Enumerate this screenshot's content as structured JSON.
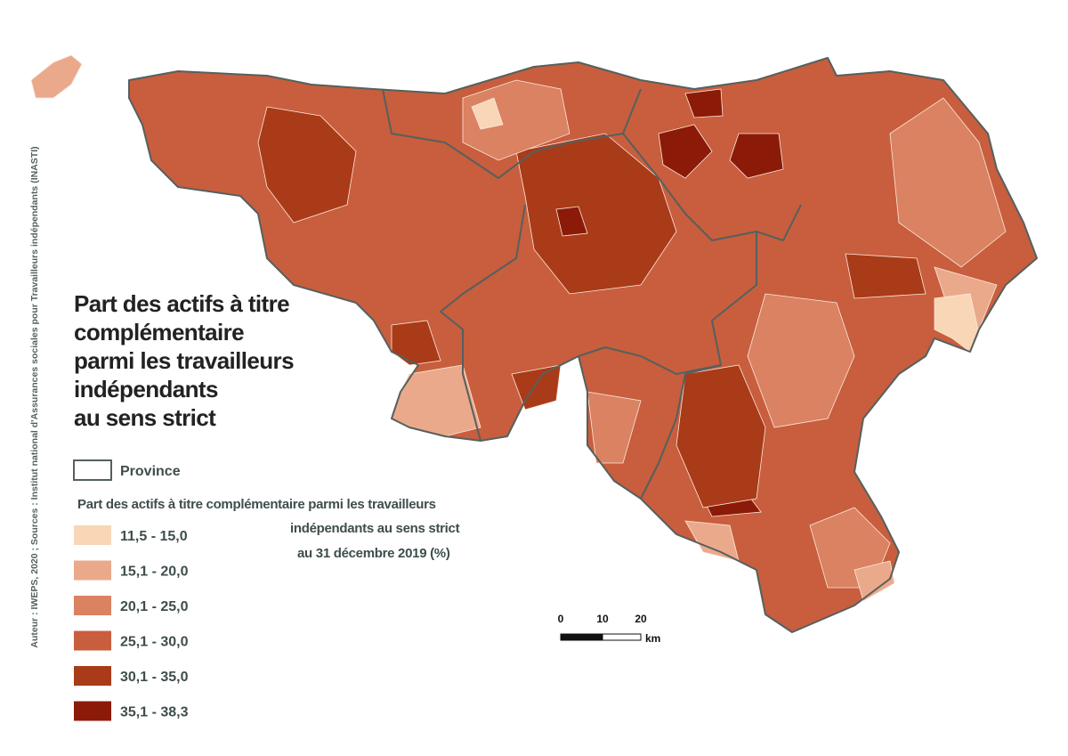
{
  "title_lines": [
    "Part des actifs à titre",
    "complémentaire",
    "parmi les travailleurs",
    "indépendants",
    "au sens strict"
  ],
  "legend": {
    "province": "Province",
    "title_lines": [
      "Part des actifs à titre complémentaire parmi les travailleurs",
      "indépendants au sens strict",
      "au 31 décembre 2019 (%)"
    ],
    "classes": [
      {
        "label": "11,5 - 15,0",
        "color": "#f8d6b6"
      },
      {
        "label": "15,1 - 20,0",
        "color": "#eba98b"
      },
      {
        "label": "20,1 - 25,0",
        "color": "#da8262"
      },
      {
        "label": "25,1 - 30,0",
        "color": "#c85e3d"
      },
      {
        "label": "30,1 - 35,0",
        "color": "#a93b19"
      },
      {
        "label": "35,1 - 38,3",
        "color": "#8c1a08"
      }
    ]
  },
  "scale_bar": {
    "ticks": [
      0,
      10,
      20
    ],
    "unit": "km"
  },
  "credit": "Auteur : IWEPS, 2020 ; Sources : Institut national d'Assurances sociales pour Travailleurs indépendants (INASTI)"
}
